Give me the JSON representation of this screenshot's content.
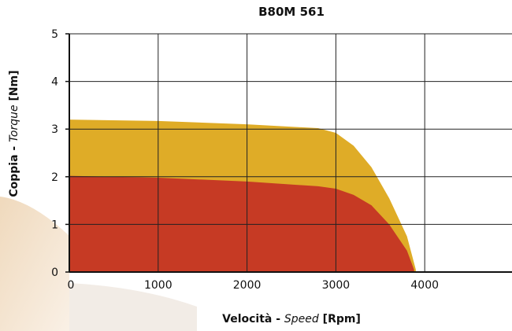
{
  "chart_data": {
    "type": "area",
    "title": "B80M 561",
    "xlabel": {
      "main": "Velocità",
      "separator": " - ",
      "italic": "Speed",
      "unit": " [Rpm]"
    },
    "ylabel": {
      "main": "Coppia",
      "separator": " - ",
      "italic": "Torque",
      "unit": " [Nm]"
    },
    "x_ticks": [
      0,
      1000,
      2000,
      3000,
      4000
    ],
    "y_ticks": [
      0,
      1,
      2,
      3,
      4,
      5
    ],
    "xlim": [
      0,
      5000
    ],
    "ylim": [
      0,
      5
    ],
    "grid": true,
    "series": [
      {
        "color": "#dfac27",
        "points": [
          [
            0,
            3.2
          ],
          [
            1000,
            3.17
          ],
          [
            2000,
            3.1
          ],
          [
            2800,
            3.02
          ],
          [
            3000,
            2.92
          ],
          [
            3200,
            2.65
          ],
          [
            3400,
            2.2
          ],
          [
            3600,
            1.55
          ],
          [
            3800,
            0.75
          ],
          [
            3900,
            0.05
          ]
        ]
      },
      {
        "color": "#c63a24",
        "points": [
          [
            0,
            2.02
          ],
          [
            1000,
            1.98
          ],
          [
            2000,
            1.9
          ],
          [
            2800,
            1.8
          ],
          [
            3000,
            1.75
          ],
          [
            3200,
            1.62
          ],
          [
            3400,
            1.4
          ],
          [
            3600,
            1.0
          ],
          [
            3800,
            0.45
          ],
          [
            3880,
            0.05
          ]
        ]
      }
    ]
  }
}
